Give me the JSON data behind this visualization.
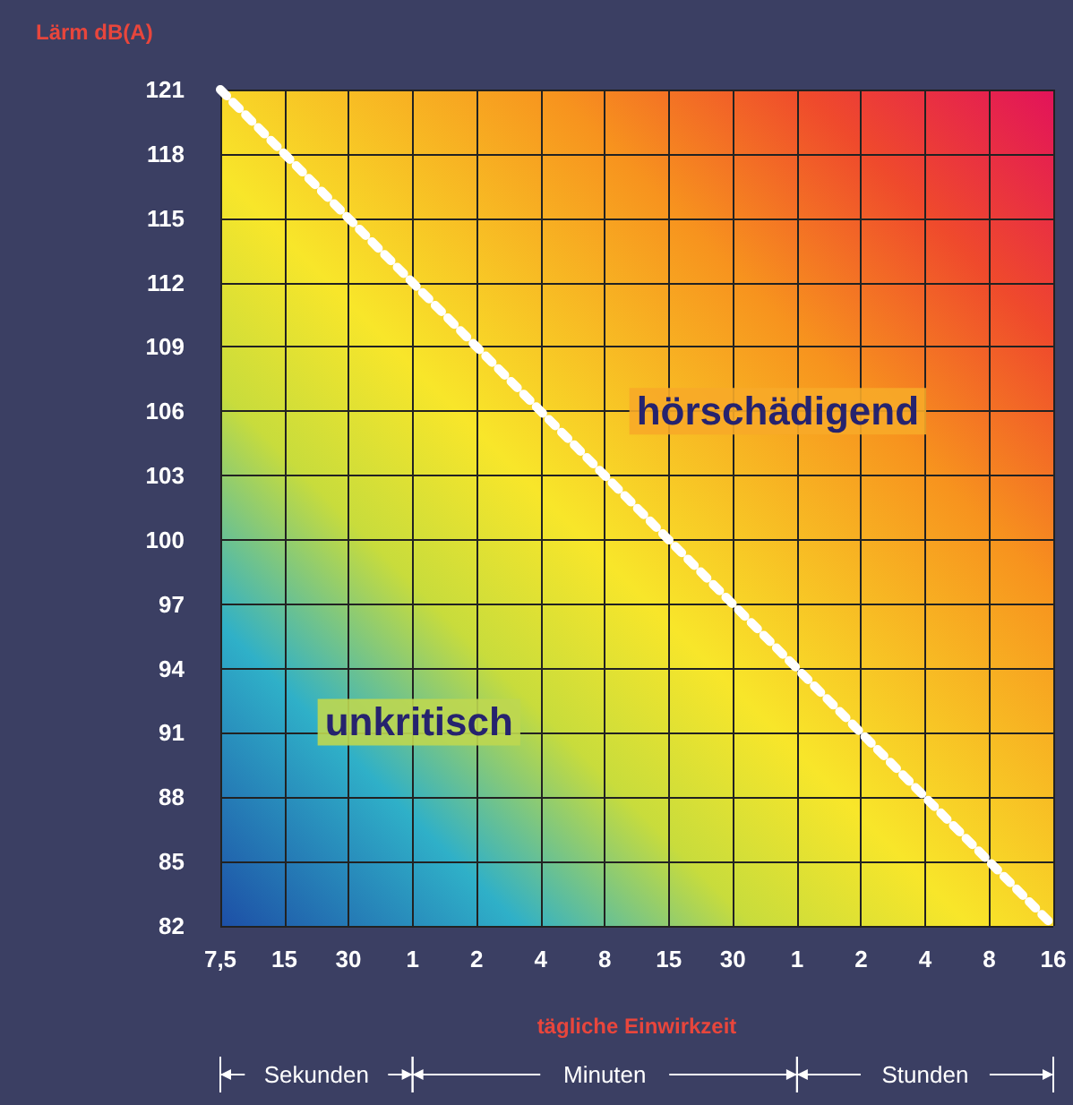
{
  "chart_data": {
    "type": "line",
    "xlabel": "tägliche Einwirkzeit",
    "ylabel": "Lärm dB(A)",
    "categories": [
      "7,5",
      "15",
      "30",
      "1",
      "2",
      "4",
      "8",
      "15",
      "30",
      "1",
      "2",
      "4",
      "8",
      "16"
    ],
    "series": [
      {
        "color": "#ffffff",
        "values": [
          121,
          118,
          115,
          112,
          109,
          106,
          103,
          100,
          97,
          94,
          91,
          88,
          85,
          82
        ]
      }
    ],
    "ylim": [
      82,
      121
    ],
    "yticks": [
      82,
      85,
      88,
      91,
      94,
      97,
      100,
      103,
      106,
      109,
      112,
      115,
      118,
      121
    ],
    "grid": true,
    "marker": "none",
    "line_style": "dotted",
    "annotations": [
      "hörschädigend",
      "unkritisch",
      "Sekunden",
      "Minuten",
      "Stunden"
    ]
  }
}
